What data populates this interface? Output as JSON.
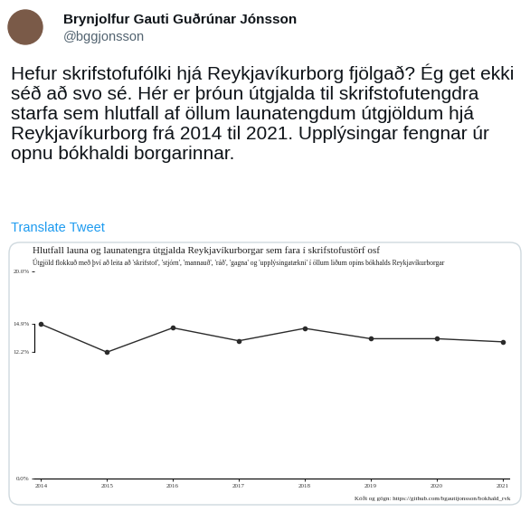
{
  "tweet": {
    "author": "Brynjolfur Gauti Guðrúnar Jónsson",
    "handle": "@bggjonsson",
    "text": "Hefur skrifstofufólki hjá Reykjavíkurborg fjölgað? Ég get ekki séð að svo sé. Hér er þróun útgjalda til skrifstofutengdra starfa sem hlutfall af öllum launatengdum útgjöldum hjá Reykjavíkurborg frá 2014 til 2021. Upplýsingar fengnar úr opnu bókhaldi borgarinnar.",
    "translate": "Translate Tweet"
  },
  "chart_data": {
    "type": "line",
    "title": "Hlutfall launa og launatengra útgjalda Reykjavíkurborgar sem fara í skrifstofustörf osf",
    "subtitle": "Útgjöld flokkuð með því að leita að 'skrifstof', 'stjórn', 'mannauð', 'ráð', 'gagna' og 'upplýsingatækni' í öllum liðum opins bókhalds Reykjavíkurborgar",
    "caption": "Kóði og gögn: https://github.com/bgautijonsson/bokhald_rvk",
    "x": [
      2014,
      2015,
      2016,
      2017,
      2018,
      2019,
      2020,
      2021
    ],
    "values": [
      14.9,
      12.2,
      14.55,
      13.3,
      14.5,
      13.5,
      13.5,
      13.2
    ],
    "color": "#2b2b2b",
    "marker": "circle",
    "line_style": "solid",
    "xlim": [
      2013.9,
      2021.1
    ],
    "xticks": [
      2014,
      2015,
      2016,
      2017,
      2018,
      2019,
      2020,
      2021
    ],
    "ylim": [
      0,
      20
    ],
    "yticks": [
      {
        "value": 0,
        "label": "0.0%"
      },
      {
        "value": 12.2,
        "label": "12.2%"
      },
      {
        "value": 14.9,
        "label": "14.9%"
      },
      {
        "value": 20,
        "label": "20.0%"
      }
    ],
    "grid": false
  }
}
